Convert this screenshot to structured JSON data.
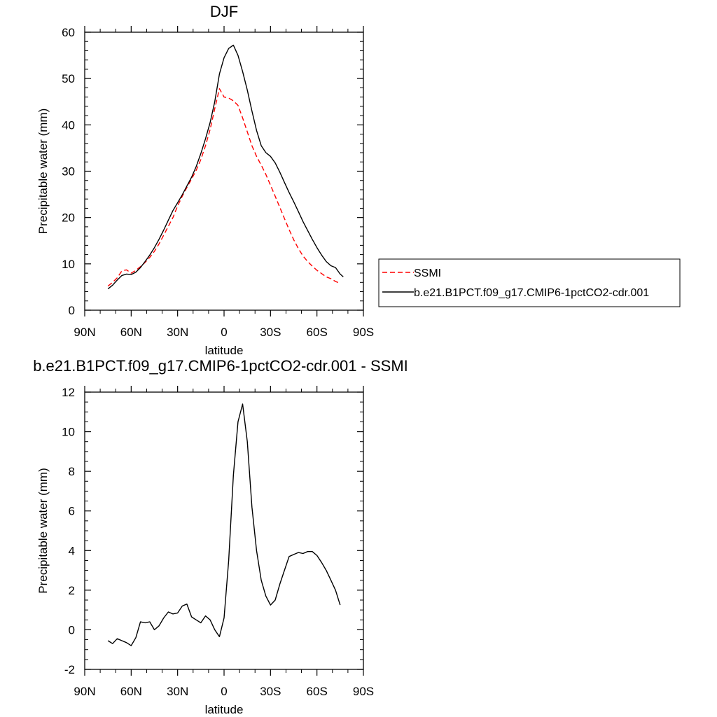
{
  "chart_data": [
    {
      "type": "line",
      "title": "DJF",
      "xlabel": "latitude",
      "ylabel": "Precipitable water (mm)",
      "xlim": [
        90,
        -90
      ],
      "ylim": [
        0,
        60
      ],
      "x_ticks": [
        90,
        60,
        30,
        0,
        -30,
        -60,
        -90
      ],
      "x_tick_labels": [
        "90N",
        "60N",
        "30N",
        "0",
        "30S",
        "60S",
        "90S"
      ],
      "y_ticks": [
        0,
        10,
        20,
        30,
        40,
        50,
        60
      ],
      "y_tick_labels": [
        "0",
        "10",
        "20",
        "30",
        "40",
        "50",
        "60"
      ],
      "grid": false,
      "legend_position": "right",
      "series": [
        {
          "name": "SSMI",
          "color": "#ff0000",
          "style": "dashed",
          "x": [
            75,
            72,
            69,
            66,
            63,
            60,
            57,
            54,
            51,
            48,
            45,
            42,
            39,
            36,
            33,
            30,
            27,
            24,
            21,
            18,
            15,
            12,
            9,
            6,
            3,
            0,
            -3,
            -6,
            -9,
            -12,
            -15,
            -18,
            -21,
            -24,
            -27,
            -30,
            -33,
            -36,
            -39,
            -42,
            -45,
            -48,
            -51,
            -54,
            -57,
            -60,
            -63,
            -66,
            -69,
            -72,
            -75
          ],
          "values": [
            5.2,
            6.0,
            7.0,
            8.5,
            8.7,
            8.0,
            8.6,
            9.4,
            10.3,
            11.4,
            12.7,
            14.3,
            16.2,
            18.1,
            20.0,
            22.5,
            24.6,
            26.5,
            28.3,
            30.2,
            32.5,
            35.5,
            39.0,
            43.5,
            47.8,
            46.0,
            45.8,
            45.2,
            44.2,
            41.5,
            38.5,
            35.5,
            33.2,
            31.3,
            29.3,
            27.0,
            24.6,
            22.2,
            19.8,
            17.4,
            15.2,
            13.3,
            11.7,
            10.5,
            9.5,
            8.6,
            7.9,
            7.2,
            6.8,
            6.2,
            5.8
          ]
        },
        {
          "name": "b.e21.B1PCT.f09_g17.CMIP6-1pctCO2-cdr.001",
          "color": "#000000",
          "style": "solid",
          "x": [
            75,
            72,
            69,
            66,
            63,
            60,
            57,
            54,
            51,
            48,
            45,
            42,
            39,
            36,
            33,
            30,
            27,
            24,
            21,
            18,
            15,
            12,
            9,
            6,
            3,
            0,
            -3,
            -6,
            -9,
            -12,
            -15,
            -18,
            -21,
            -24,
            -27,
            -30,
            -33,
            -36,
            -39,
            -42,
            -45,
            -48,
            -51,
            -54,
            -57,
            -60,
            -63,
            -66,
            -69,
            -72,
            -75,
            -77
          ],
          "values": [
            4.6,
            5.4,
            6.5,
            7.5,
            7.8,
            7.7,
            8.2,
            9.2,
            10.5,
            11.9,
            13.5,
            15.3,
            17.3,
            19.4,
            21.5,
            23.2,
            24.9,
            26.8,
            28.7,
            31.0,
            33.8,
            37.0,
            40.5,
            45.0,
            51.0,
            54.5,
            56.5,
            57.2,
            55.0,
            51.5,
            47.5,
            43.0,
            38.8,
            35.5,
            34.0,
            33.2,
            31.8,
            29.8,
            27.6,
            25.4,
            23.4,
            21.3,
            19.1,
            17.2,
            15.3,
            13.5,
            11.9,
            10.5,
            9.6,
            9.2,
            7.8,
            7.2
          ]
        }
      ]
    },
    {
      "type": "line",
      "title": "b.e21.B1PCT.f09_g17.CMIP6-1pctCO2-cdr.001 - SSMI",
      "xlabel": "latitude",
      "ylabel": "Precipitable water (mm)",
      "xlim": [
        90,
        -90
      ],
      "ylim": [
        -2,
        12
      ],
      "x_ticks": [
        90,
        60,
        30,
        0,
        -30,
        -60,
        -90
      ],
      "x_tick_labels": [
        "90N",
        "60N",
        "30N",
        "0",
        "30S",
        "60S",
        "90S"
      ],
      "y_ticks": [
        -2,
        0,
        2,
        4,
        6,
        8,
        10,
        12
      ],
      "y_tick_labels": [
        "-2",
        "0",
        "2",
        "4",
        "6",
        "8",
        "10",
        "12"
      ],
      "grid": false,
      "series": [
        {
          "color": "#000000",
          "style": "solid",
          "x": [
            75,
            72,
            69,
            66,
            63,
            60,
            57,
            54,
            51,
            48,
            45,
            42,
            39,
            36,
            33,
            30,
            27,
            24,
            21,
            18,
            15,
            12,
            9,
            6,
            3,
            0,
            -3,
            -6,
            -9,
            -12,
            -15,
            -18,
            -21,
            -24,
            -27,
            -30,
            -33,
            -36,
            -39,
            -42,
            -45,
            -48,
            -51,
            -54,
            -57,
            -60,
            -63,
            -66,
            -69,
            -72,
            -75
          ],
          "values": [
            -0.55,
            -0.7,
            -0.45,
            -0.55,
            -0.65,
            -0.8,
            -0.4,
            0.4,
            0.35,
            0.4,
            0.0,
            0.2,
            0.6,
            0.9,
            0.8,
            0.85,
            1.2,
            1.3,
            0.65,
            0.5,
            0.35,
            0.7,
            0.5,
            0.0,
            -0.35,
            0.6,
            3.5,
            7.8,
            10.5,
            11.4,
            9.5,
            6.2,
            4.0,
            2.5,
            1.7,
            1.25,
            1.5,
            2.3,
            3.0,
            3.7,
            3.8,
            3.9,
            3.85,
            3.95,
            3.95,
            3.75,
            3.4,
            3.0,
            2.5,
            2.0,
            1.25
          ]
        }
      ]
    }
  ]
}
